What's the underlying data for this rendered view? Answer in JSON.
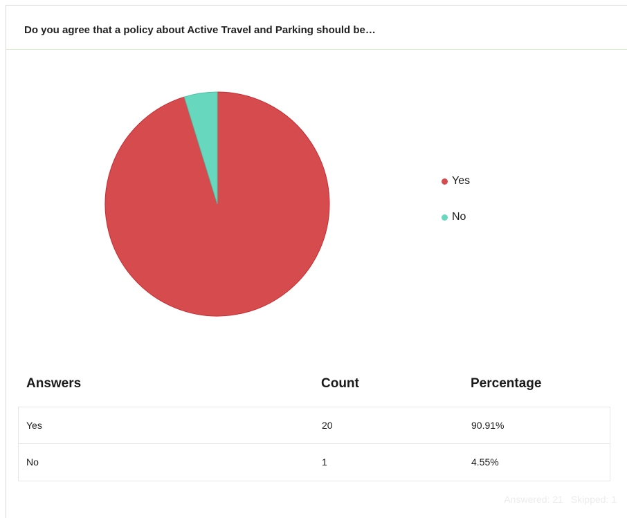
{
  "question": {
    "title": "Do you agree that a policy about Active Travel and Parking should be…"
  },
  "chart_data": {
    "type": "pie",
    "categories": [
      "Yes",
      "No"
    ],
    "values": [
      20,
      1
    ],
    "colors": [
      "#d64b4e",
      "#67d8be"
    ],
    "stroke_colors": [
      "#c62c31",
      "#4fbfa6"
    ],
    "legend_position": "right"
  },
  "table": {
    "headers": {
      "answers": "Answers",
      "count": "Count",
      "percentage": "Percentage"
    },
    "rows": [
      {
        "answer": "Yes",
        "count": "20",
        "percentage": "90.91%"
      },
      {
        "answer": "No",
        "count": "1",
        "percentage": "4.55%"
      }
    ]
  },
  "footer": {
    "answered": "Answered: 21",
    "skipped": "Skipped: 1"
  }
}
